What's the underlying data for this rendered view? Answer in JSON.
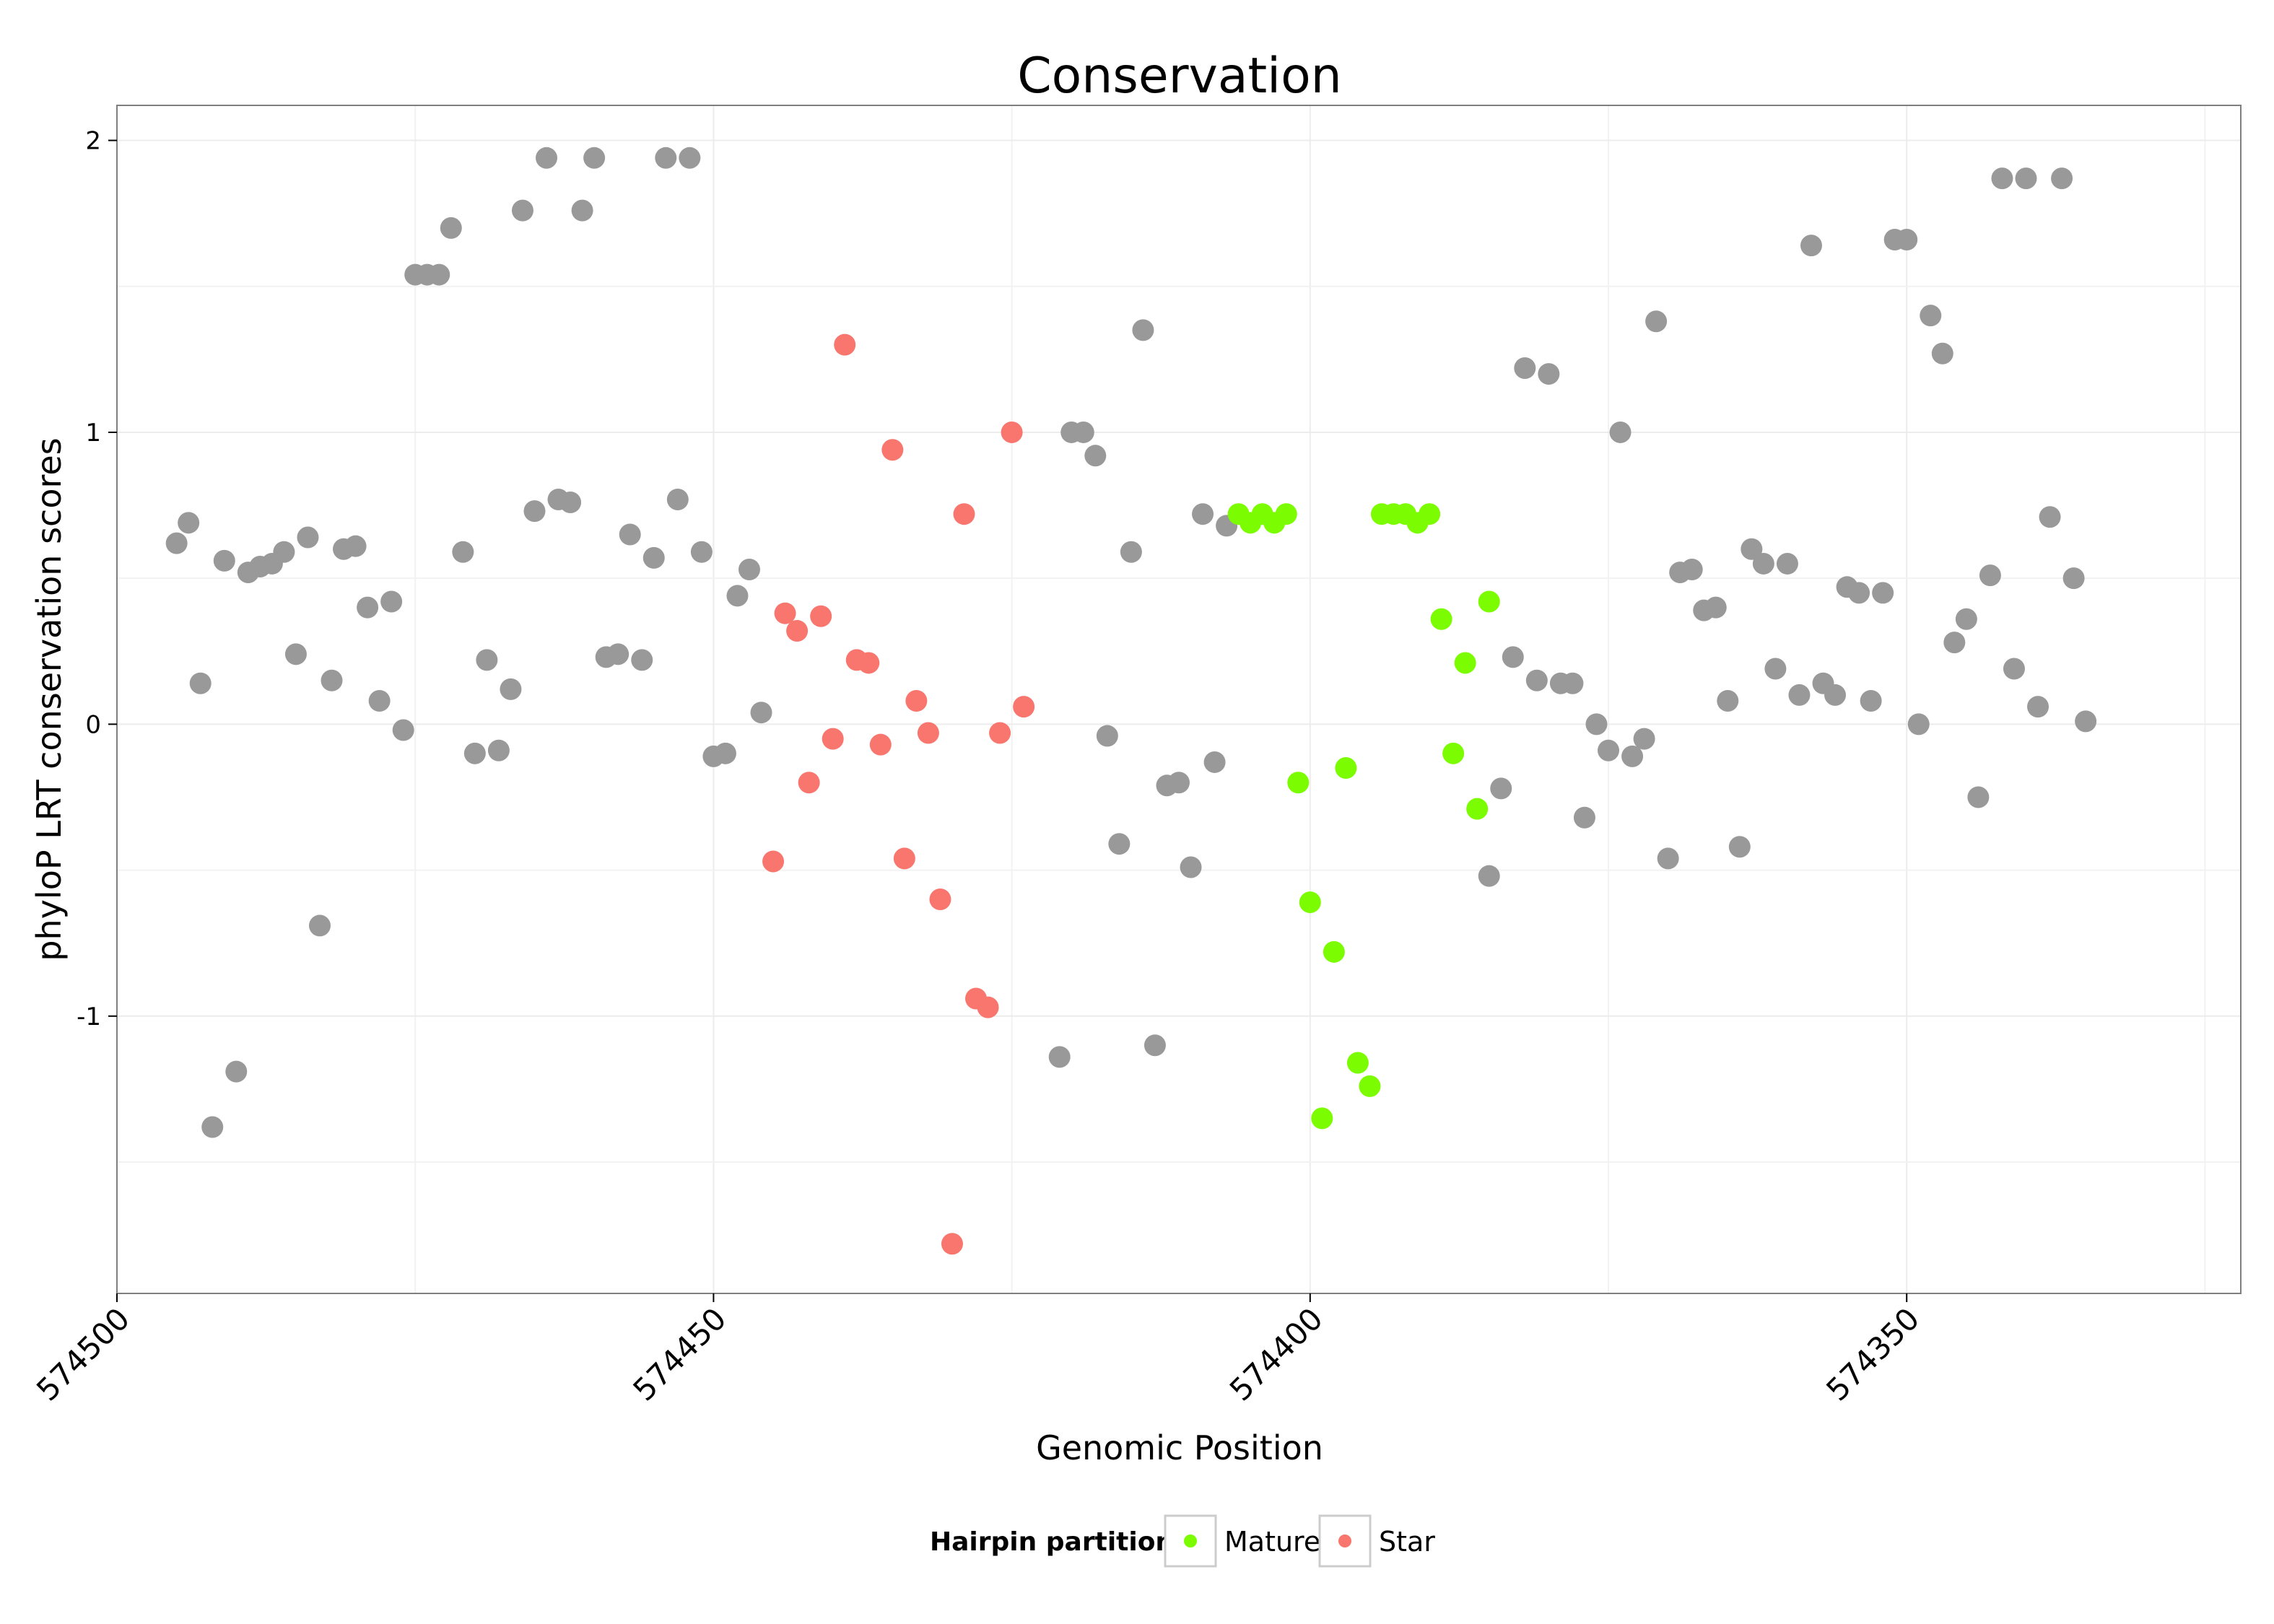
{
  "chart_data": {
    "type": "scatter",
    "title": "Conservation",
    "xlabel": "Genomic Position",
    "ylabel": "phyloP LRT conservation scores",
    "xlim": [
      574500,
      574322
    ],
    "x_reversed": true,
    "ylim": [
      -1.95,
      2.12
    ],
    "x_ticks": [
      574500,
      574450,
      574400,
      574350
    ],
    "x_tick_labels": [
      "574500",
      "574450",
      "574400",
      "574350"
    ],
    "y_ticks": [
      -1,
      0,
      1,
      2
    ],
    "y_tick_labels": [
      "-1",
      "0",
      "1",
      "2"
    ],
    "grid": true,
    "colors": {
      "other": "#999999",
      "Mature": "#7CFC00",
      "Star": "#F8766D"
    },
    "legend": {
      "title": "Hairpin partition",
      "position": "bottom",
      "entries": [
        {
          "label": "Mature",
          "color": "#7CFC00"
        },
        {
          "label": "Star",
          "color": "#F8766D"
        }
      ]
    },
    "series": [
      {
        "name": "Other",
        "color": "#999999",
        "points": [
          [
            574495,
            0.62
          ],
          [
            574494,
            0.69
          ],
          [
            574493,
            0.14
          ],
          [
            574492,
            -1.38
          ],
          [
            574491,
            0.56
          ],
          [
            574490,
            -1.19
          ],
          [
            574489,
            0.52
          ],
          [
            574488,
            0.54
          ],
          [
            574487,
            0.55
          ],
          [
            574486,
            0.59
          ],
          [
            574485,
            0.24
          ],
          [
            574484,
            0.64
          ],
          [
            574483,
            -0.69
          ],
          [
            574482,
            0.15
          ],
          [
            574481,
            0.6
          ],
          [
            574480,
            0.61
          ],
          [
            574479,
            0.4
          ],
          [
            574478,
            0.08
          ],
          [
            574477,
            0.42
          ],
          [
            574476,
            -0.02
          ],
          [
            574475,
            1.54
          ],
          [
            574474,
            1.54
          ],
          [
            574473,
            1.54
          ],
          [
            574472,
            1.7
          ],
          [
            574471,
            0.59
          ],
          [
            574470,
            -0.1
          ],
          [
            574469,
            0.22
          ],
          [
            574468,
            -0.09
          ],
          [
            574467,
            0.12
          ],
          [
            574466,
            1.76
          ],
          [
            574465,
            0.73
          ],
          [
            574464,
            1.94
          ],
          [
            574463,
            0.77
          ],
          [
            574462,
            0.76
          ],
          [
            574461,
            1.76
          ],
          [
            574460,
            1.94
          ],
          [
            574459,
            0.23
          ],
          [
            574458,
            0.24
          ],
          [
            574457,
            0.65
          ],
          [
            574456,
            0.22
          ],
          [
            574455,
            0.57
          ],
          [
            574454,
            1.94
          ],
          [
            574453,
            0.77
          ],
          [
            574452,
            1.94
          ],
          [
            574451,
            0.59
          ],
          [
            574450,
            -0.11
          ],
          [
            574449,
            -0.1
          ],
          [
            574448,
            0.44
          ],
          [
            574447,
            0.53
          ],
          [
            574446,
            0.04
          ],
          [
            574421,
            -1.14
          ],
          [
            574420,
            1.0
          ],
          [
            574419,
            1.0
          ],
          [
            574418,
            0.92
          ],
          [
            574417,
            -0.04
          ],
          [
            574416,
            -0.41
          ],
          [
            574415,
            0.59
          ],
          [
            574414,
            1.35
          ],
          [
            574413,
            -1.1
          ],
          [
            574412,
            -0.21
          ],
          [
            574411,
            -0.2
          ],
          [
            574410,
            -0.49
          ],
          [
            574409,
            0.72
          ],
          [
            574408,
            -0.13
          ],
          [
            574407,
            0.68
          ],
          [
            574385,
            -0.52
          ],
          [
            574384,
            -0.22
          ],
          [
            574383,
            0.23
          ],
          [
            574382,
            1.22
          ],
          [
            574381,
            0.15
          ],
          [
            574380,
            1.2
          ],
          [
            574379,
            0.14
          ],
          [
            574378,
            0.14
          ],
          [
            574377,
            -0.32
          ],
          [
            574376,
            0.0
          ],
          [
            574375,
            -0.09
          ],
          [
            574374,
            1.0
          ],
          [
            574373,
            -0.11
          ],
          [
            574372,
            -0.05
          ],
          [
            574371,
            1.38
          ],
          [
            574370,
            -0.46
          ],
          [
            574369,
            0.52
          ],
          [
            574368,
            0.53
          ],
          [
            574367,
            0.39
          ],
          [
            574366,
            0.4
          ],
          [
            574365,
            0.08
          ],
          [
            574364,
            -0.42
          ],
          [
            574363,
            0.6
          ],
          [
            574362,
            0.55
          ],
          [
            574361,
            0.19
          ],
          [
            574360,
            0.55
          ],
          [
            574359,
            0.1
          ],
          [
            574358,
            1.64
          ],
          [
            574357,
            0.14
          ],
          [
            574356,
            0.1
          ],
          [
            574355,
            0.47
          ],
          [
            574354,
            0.45
          ],
          [
            574353,
            0.08
          ],
          [
            574352,
            0.45
          ],
          [
            574351,
            1.66
          ],
          [
            574350,
            1.66
          ],
          [
            574349,
            0.0
          ],
          [
            574348,
            1.4
          ],
          [
            574347,
            1.27
          ],
          [
            574346,
            0.28
          ],
          [
            574345,
            0.36
          ],
          [
            574344,
            -0.25
          ],
          [
            574343,
            0.51
          ],
          [
            574342,
            1.87
          ],
          [
            574341,
            0.19
          ],
          [
            574340,
            1.87
          ],
          [
            574339,
            0.06
          ],
          [
            574338,
            0.71
          ],
          [
            574337,
            1.87
          ],
          [
            574336,
            0.5
          ],
          [
            574335,
            0.01
          ]
        ]
      },
      {
        "name": "Star",
        "color": "#F8766D",
        "points": [
          [
            574445,
            -0.47
          ],
          [
            574444,
            0.38
          ],
          [
            574443,
            0.32
          ],
          [
            574442,
            -0.2
          ],
          [
            574441,
            0.37
          ],
          [
            574440,
            -0.05
          ],
          [
            574439,
            1.3
          ],
          [
            574438,
            0.22
          ],
          [
            574437,
            0.21
          ],
          [
            574436,
            -0.07
          ],
          [
            574435,
            0.94
          ],
          [
            574434,
            -0.46
          ],
          [
            574433,
            0.08
          ],
          [
            574432,
            -0.03
          ],
          [
            574431,
            -0.6
          ],
          [
            574430,
            -1.78
          ],
          [
            574429,
            0.72
          ],
          [
            574428,
            -0.94
          ],
          [
            574427,
            -0.97
          ],
          [
            574426,
            -0.03
          ],
          [
            574425,
            1.0
          ],
          [
            574424,
            0.06
          ]
        ]
      },
      {
        "name": "Mature",
        "color": "#7CFC00",
        "points": [
          [
            574406,
            0.72
          ],
          [
            574405,
            0.69
          ],
          [
            574404,
            0.72
          ],
          [
            574403,
            0.69
          ],
          [
            574402,
            0.72
          ],
          [
            574401,
            -0.2
          ],
          [
            574400,
            -0.61
          ],
          [
            574399,
            -1.35
          ],
          [
            574398,
            -0.78
          ],
          [
            574397,
            -0.15
          ],
          [
            574396,
            -1.16
          ],
          [
            574395,
            -1.24
          ],
          [
            574394,
            0.72
          ],
          [
            574393,
            0.72
          ],
          [
            574392,
            0.72
          ],
          [
            574391,
            0.69
          ],
          [
            574390,
            0.72
          ],
          [
            574389,
            0.36
          ],
          [
            574388,
            -0.1
          ],
          [
            574387,
            0.21
          ],
          [
            574386,
            -0.29
          ],
          [
            574385,
            0.42
          ]
        ]
      }
    ]
  }
}
